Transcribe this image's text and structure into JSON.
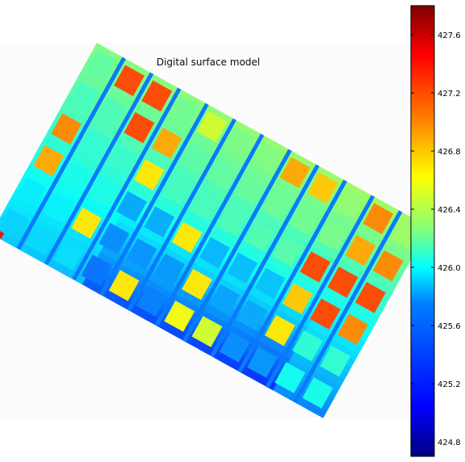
{
  "chart_data": {
    "type": "heatmap",
    "title": "Digital surface model",
    "xlabel": "",
    "ylabel": "",
    "colormap": "jet",
    "axes_visible": false,
    "colorbar": {
      "orientation": "vertical",
      "placement": "right",
      "range": [
        424.7,
        427.8
      ],
      "ticks": [
        424.8,
        425.2,
        425.6,
        426.0,
        426.4,
        426.8,
        427.2,
        427.6
      ],
      "tick_labels": [
        "424.8",
        "425.2",
        "425.6",
        "426.0",
        "426.4",
        "426.8",
        "427.2",
        "427.6"
      ]
    },
    "field": {
      "shape": "rotated rectangular field of plots",
      "background_value": 425.9,
      "description_values": {
        "plot_rows": 6,
        "plot_cols": 12,
        "high_plots_value": 427.2,
        "yellow_plots_value": 426.7,
        "low_corridor_value": 425.3
      }
    }
  }
}
